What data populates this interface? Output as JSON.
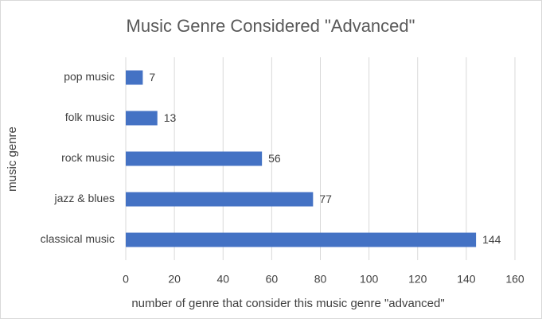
{
  "chart_data": {
    "type": "barh",
    "title": "Music Genre Considered \"Advanced\"",
    "x_label": "number of genre that consider this music genre \"advanced\"",
    "y_label": "music genre",
    "categories": [
      "pop music",
      "folk music",
      "rock music",
      "jazz & blues",
      "classical music"
    ],
    "values": [
      7,
      13,
      56,
      77,
      144
    ],
    "color": "#4472c4",
    "xlim": [
      0,
      160
    ],
    "xticks": [
      0,
      20,
      40,
      60,
      80,
      100,
      120,
      140,
      160
    ],
    "grid": true
  }
}
